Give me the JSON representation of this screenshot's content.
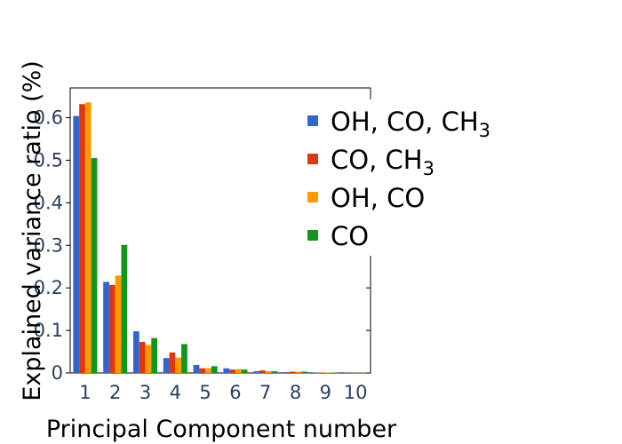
{
  "chart_data": {
    "type": "bar",
    "categories": [
      "1",
      "2",
      "3",
      "4",
      "5",
      "6",
      "7",
      "8",
      "9",
      "10"
    ],
    "series": [
      {
        "name": "OH, CO, CH3",
        "name_base": "OH, CO, CH",
        "name_sub": "3",
        "color": "#3366cc",
        "values": [
          0.604,
          0.214,
          0.098,
          0.035,
          0.019,
          0.011,
          0.004,
          0.002,
          0.001,
          0.0005
        ]
      },
      {
        "name": "CO, CH3",
        "name_base": "CO, CH",
        "name_sub": "3",
        "color": "#dc3912",
        "values": [
          0.632,
          0.207,
          0.073,
          0.048,
          0.011,
          0.008,
          0.006,
          0.003,
          0.001,
          0.001
        ]
      },
      {
        "name": "OH, CO",
        "name_base": "OH, CO",
        "name_sub": "",
        "color": "#ff9900",
        "values": [
          0.636,
          0.229,
          0.066,
          0.036,
          0.011,
          0.009,
          0.004,
          0.003,
          0.001,
          0.0005
        ]
      },
      {
        "name": "CO",
        "name_base": "CO",
        "name_sub": "",
        "color": "#109618",
        "values": [
          0.505,
          0.301,
          0.082,
          0.068,
          0.016,
          0.008,
          0.004,
          0.003,
          0.001,
          0.001
        ]
      }
    ],
    "xlabel": "Principal Component number",
    "ylabel": "Explained variance ratio (%)",
    "ylim": [
      0,
      0.67
    ],
    "yticks": [
      0,
      0.1,
      0.2,
      0.3,
      0.4,
      0.5,
      0.6
    ],
    "ytick_labels": [
      "0",
      "0.1",
      "0.2",
      "0.3",
      "0.4",
      "0.5",
      "0.6"
    ],
    "grid": false,
    "legend_position": "top-right"
  }
}
